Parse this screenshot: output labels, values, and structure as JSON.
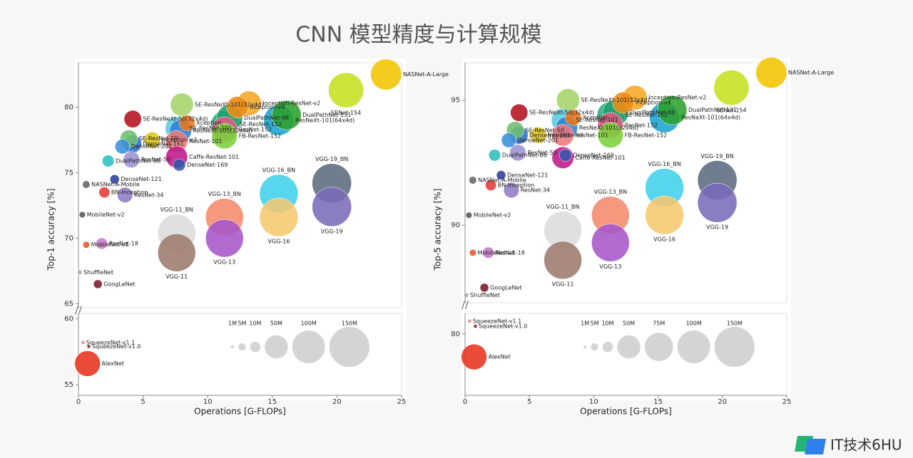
{
  "title": "CNN 模型精度与计算规模",
  "footer": "IT技术6HU",
  "chart_data": [
    {
      "type": "scatter",
      "ylabel": "Top-1 accuracy [%]",
      "xlim": [
        0,
        25
      ],
      "ylim": [
        64.7,
        83.4
      ],
      "yticks": [
        65,
        70,
        75,
        80
      ],
      "labels": [
        "NASNet-A-Large",
        "SENet-154",
        "SE-ResNeXt-101(32x4d)",
        "Inception-ResNet-v2",
        "Inception-v4",
        "DualPathNet-131",
        "DualPathNet-98",
        "ResNeXt-101(64x4d)",
        "SE-ResNet-152",
        "SE-ResNeXt-50(32x4d)",
        "Xception",
        "SE-ResNet-101",
        "ResNeXt-101(32x4d)",
        "ResNet-152",
        "SE-ResNet-50",
        "Inception-v3",
        "DenseNet-201",
        "DenseNet-161",
        "ResNet-101",
        "FB-ResNet-152",
        "ResNet-50",
        "Caffe-ResNet-101",
        "DenseNet-169",
        "DualPathNet-68",
        "DenseNet-121",
        "NASNet-A-Mobile",
        "BN-Inception",
        "ResNet-34",
        "MobileNet-v2",
        "VGG-19_BN",
        "VGG-16_BN",
        "VGG-13_BN",
        "VGG-11_BN",
        "VGG-19",
        "VGG-16",
        "VGG-13",
        "VGG-11",
        "ResNet-18",
        "MobileNet-v1",
        "ShuffleNet",
        "GoogLeNet"
      ],
      "x": [
        23.8,
        20.7,
        8.0,
        13.2,
        12.3,
        16.1,
        11.7,
        15.5,
        11.3,
        4.2,
        8.4,
        7.6,
        7.9,
        11.3,
        3.9,
        5.7,
        3.4,
        4.2,
        7.6,
        11.3,
        4.1,
        7.6,
        7.8,
        2.3,
        2.8,
        0.6,
        2.0,
        3.6,
        0.3,
        19.6,
        15.5,
        11.3,
        7.6,
        19.6,
        15.5,
        11.3,
        7.6,
        1.8,
        0.6,
        0.1,
        1.5
      ],
      "values": [
        82.5,
        81.3,
        80.2,
        80.3,
        80.0,
        79.4,
        79.2,
        79.0,
        78.7,
        79.1,
        78.8,
        78.4,
        78.2,
        78.3,
        77.6,
        77.5,
        77.0,
        77.2,
        77.4,
        77.8,
        76.0,
        76.2,
        75.6,
        75.9,
        74.5,
        74.1,
        73.5,
        73.3,
        71.8,
        74.2,
        73.4,
        71.6,
        70.4,
        72.4,
        71.6,
        70.0,
        68.9,
        69.6,
        69.5,
        67.4,
        66.5
      ],
      "sizes": [
        88.9,
        115,
        49,
        56,
        43,
        80,
        62,
        84,
        67,
        28,
        23,
        49,
        44,
        60,
        28,
        24,
        20,
        29,
        44,
        60,
        25,
        44,
        14,
        13,
        8,
        5.3,
        11,
        22,
        3.5,
        144,
        138,
        133,
        133,
        144,
        138,
        133,
        133,
        12,
        4.2,
        2,
        7
      ],
      "colors": [
        "#f2c500",
        "#c6e021",
        "#a5d46a",
        "#f5a623",
        "#ee8a12",
        "#2ca02c",
        "#1f9e6a",
        "#1aa3d1",
        "#27ad81",
        "#b3121d",
        "#e8751a",
        "#5cc8dd",
        "#2c7fd6",
        "#e05a84",
        "#6dbf6f",
        "#e0c61c",
        "#3a8fd8",
        "#2d6fc9",
        "#ea7b7b",
        "#7cd13a",
        "#9c94d4",
        "#c0178a",
        "#3458aa",
        "#2bbfbf",
        "#2d3e9a",
        "#666666",
        "#e53935",
        "#8e7cc3",
        "#555555",
        "#5b6b80",
        "#40d0ea",
        "#f58a6c",
        "#dcdcdc",
        "#7a6bb8",
        "#f5c870",
        "#a656c9",
        "#9c7b6c",
        "#c87ac8",
        "#e8552a",
        "#aaaaaa",
        "#7a1a2a"
      ]
    },
    {
      "type": "scatter",
      "xlabel": "Operations [G-FLOPs]",
      "xlim": [
        0,
        25
      ],
      "xticks": [
        0,
        5,
        10,
        15,
        20,
        25
      ],
      "ylim": [
        54.2,
        60.4
      ],
      "yticks": [
        55,
        60
      ],
      "labels": [
        "SqueezeNet-v1.1",
        "SqueezeNet-v1.0",
        "AlexNet"
      ],
      "x": [
        0.35,
        0.8,
        0.7
      ],
      "values": [
        58.2,
        57.9,
        56.6
      ],
      "sizes": [
        1.2,
        1.2,
        61
      ],
      "colors": [
        "#f08080",
        "#8b1a2a",
        "#e8321e"
      ],
      "size_legend": [
        {
          "value": 1,
          "label": "1M"
        },
        {
          "value": 5,
          "label": "5M"
        },
        {
          "value": 10,
          "label": "10M"
        },
        {
          "value": 50,
          "label": "50M"
        },
        {
          "value": 100,
          "label": "100M"
        },
        {
          "value": 150,
          "label": "150M"
        }
      ]
    },
    {
      "type": "scatter",
      "ylabel": "Top-5 accuracy [%]",
      "xlim": [
        0,
        25
      ],
      "ylim": [
        86.9,
        96.5
      ],
      "yticks": [
        90,
        95
      ],
      "labels": [
        "NASNet-A-Large",
        "SENet-154",
        "SE-ResNeXt-101(32x4d)",
        "Inception-ResNet-v2",
        "Inception-v4",
        "DualPathNet-131",
        "DualPathNet-98",
        "ResNeXt-101(64x4d)",
        "SE-ResNet-152",
        "SE-ResNeXt-50(32x4d)",
        "Xception",
        "SE-ResNet-101",
        "ResNeXt-101(32x4d)",
        "ResNet-152",
        "SE-ResNet-50",
        "Inception-v3",
        "DenseNet-201",
        "DenseNet-161",
        "ResNet-101",
        "FB-ResNet-152",
        "ResNet-50",
        "Caffe-ResNet-101",
        "DenseNet-169",
        "DualPathNet-68",
        "DenseNet-121",
        "NASNet-A-Mobile",
        "BN-Inception",
        "ResNet-34",
        "MobileNet-v2",
        "VGG-19_BN",
        "VGG-16_BN",
        "VGG-13_BN",
        "VGG-11_BN",
        "VGG-19",
        "VGG-16",
        "VGG-13",
        "VGG-11",
        "ResNet-18",
        "MobileNet-v1",
        "ShuffleNet",
        "GoogLeNet"
      ],
      "x": [
        23.8,
        20.7,
        8.0,
        13.2,
        12.3,
        16.1,
        11.7,
        15.5,
        11.3,
        4.2,
        8.4,
        7.6,
        7.9,
        11.3,
        3.9,
        5.7,
        3.4,
        4.2,
        7.6,
        11.3,
        4.1,
        7.6,
        7.8,
        2.3,
        2.8,
        0.6,
        2.0,
        3.6,
        0.3,
        19.6,
        15.5,
        11.3,
        7.6,
        19.6,
        15.5,
        11.3,
        7.6,
        1.8,
        0.6,
        0.1,
        1.5
      ],
      "values": [
        96.1,
        95.5,
        95.0,
        95.1,
        94.9,
        94.6,
        94.5,
        94.3,
        94.4,
        94.5,
        94.3,
        94.2,
        93.9,
        94.0,
        93.8,
        93.6,
        93.4,
        93.6,
        93.6,
        93.6,
        92.9,
        92.7,
        92.8,
        92.8,
        92.0,
        91.8,
        91.6,
        91.4,
        90.4,
        91.8,
        91.5,
        90.4,
        89.8,
        90.9,
        90.4,
        89.3,
        88.6,
        88.9,
        88.9,
        87.2,
        87.5
      ],
      "sizes": [
        88.9,
        115,
        49,
        56,
        43,
        80,
        62,
        84,
        67,
        28,
        23,
        49,
        44,
        60,
        28,
        24,
        20,
        29,
        44,
        60,
        25,
        44,
        14,
        13,
        8,
        5.3,
        11,
        22,
        3.5,
        144,
        138,
        133,
        133,
        144,
        138,
        133,
        133,
        12,
        4.2,
        2,
        7
      ],
      "colors": [
        "#f2c500",
        "#c6e021",
        "#a5d46a",
        "#f5a623",
        "#ee8a12",
        "#2ca02c",
        "#1f9e6a",
        "#1aa3d1",
        "#27ad81",
        "#b3121d",
        "#e8751a",
        "#5cc8dd",
        "#2c7fd6",
        "#e05a84",
        "#6dbf6f",
        "#e0c61c",
        "#3a8fd8",
        "#2d6fc9",
        "#ea7b7b",
        "#7cd13a",
        "#9c94d4",
        "#c0178a",
        "#3458aa",
        "#2bbfbf",
        "#2d3e9a",
        "#666666",
        "#e53935",
        "#8e7cc3",
        "#555555",
        "#5b6b80",
        "#40d0ea",
        "#f58a6c",
        "#dcdcdc",
        "#7a6bb8",
        "#f5c870",
        "#a656c9",
        "#9c7b6c",
        "#c87ac8",
        "#e8552a",
        "#aaaaaa",
        "#7a1a2a"
      ]
    },
    {
      "type": "scatter",
      "xlabel": "Operations [G-FLOPs]",
      "xlim": [
        0,
        25
      ],
      "xticks": [
        0,
        5,
        10,
        15,
        20,
        25
      ],
      "ylim": [
        77.6,
        80.8
      ],
      "yticks": [
        80
      ],
      "labels": [
        "SqueezeNet-v1.1",
        "SqueezeNet-v1.0",
        "AlexNet"
      ],
      "x": [
        0.35,
        0.8,
        0.7
      ],
      "values": [
        80.5,
        80.3,
        79.1
      ],
      "sizes": [
        1.2,
        1.2,
        61
      ],
      "colors": [
        "#f08080",
        "#8b1a2a",
        "#e8321e"
      ],
      "size_legend": [
        {
          "value": 1,
          "label": "1M"
        },
        {
          "value": 5,
          "label": "5M"
        },
        {
          "value": 10,
          "label": "10M"
        },
        {
          "value": 50,
          "label": "50M"
        },
        {
          "value": 75,
          "label": "75M"
        },
        {
          "value": 100,
          "label": "100M"
        },
        {
          "value": 150,
          "label": "150M"
        }
      ]
    }
  ]
}
